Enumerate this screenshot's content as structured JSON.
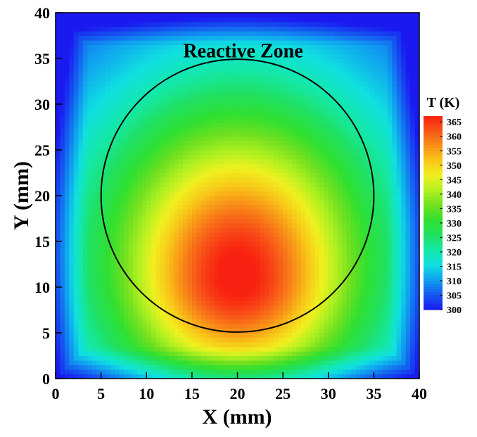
{
  "chart_data": {
    "type": "heatmap",
    "title": "",
    "xlabel": "X (mm)",
    "ylabel": "Y (mm)",
    "xlim": [
      0,
      40
    ],
    "ylim": [
      0,
      40
    ],
    "xticks": [
      0,
      5,
      10,
      15,
      20,
      25,
      30,
      35,
      40
    ],
    "yticks": [
      0,
      5,
      10,
      15,
      20,
      25,
      30,
      35,
      40
    ],
    "field": {
      "min": 300,
      "max": 367,
      "hotspot_center": [
        20,
        10
      ],
      "description_source": "temperature contour"
    },
    "annotation": {
      "text": "Reactive Zone",
      "x": 20,
      "y": 36.5
    },
    "circle": {
      "center": [
        20,
        20
      ],
      "radius": 15
    },
    "colorbar": {
      "title": "T (K)",
      "levels": [
        365,
        360,
        355,
        350,
        345,
        340,
        335,
        330,
        325,
        320,
        315,
        310,
        305,
        300
      ],
      "range": [
        300,
        367
      ],
      "colors": [
        "#1a1af0",
        "#1558f0",
        "#10a0f0",
        "#10e0e0",
        "#14e8a8",
        "#20e060",
        "#30e030",
        "#70e020",
        "#b0f020",
        "#f0f020",
        "#f8c818",
        "#f89018",
        "#f85818",
        "#f82010"
      ]
    }
  }
}
